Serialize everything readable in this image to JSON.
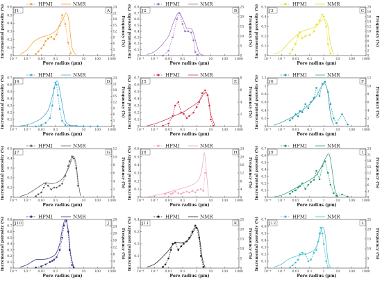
{
  "figure": {
    "legend_hpmi": "HPMI",
    "legend_nmr": "NMR",
    "xlabel": "Pore radius (μm)",
    "ylabel_left": "Incremental porosity (%)",
    "ylabel_right": "Frequency (%)",
    "xticks": [
      "10⁻⁴",
      "10⁻³",
      "0.01",
      "0.1",
      "1",
      "10",
      "100",
      "1000"
    ]
  },
  "chart_data": [
    {
      "id": "J1",
      "letter": "A",
      "color": "#f0a030",
      "type": "line",
      "xscale": "log",
      "xlim": [
        0.0001,
        1000
      ],
      "ylim_left": [
        0,
        0.6
      ],
      "yticks_left": [
        0,
        0.1,
        0.2,
        0.3,
        0.4,
        0.5,
        0.6
      ],
      "ylim_right": [
        0,
        24
      ],
      "yticks_right": [
        0,
        3,
        6,
        9,
        12,
        15,
        18,
        21,
        24
      ],
      "hpmi": {
        "x": [
          0.004,
          0.006,
          0.01,
          0.015,
          0.02,
          0.03,
          0.05,
          0.08,
          0.12,
          0.2,
          0.3,
          0.5,
          0.8,
          1.2
        ],
        "y": [
          0.02,
          0.05,
          0.09,
          0.13,
          0.18,
          0.21,
          0.23,
          0.2,
          0.26,
          0.37,
          0.5,
          0.39,
          0.16,
          0.03
        ]
      },
      "nmr": {
        "x": [
          0.0003,
          0.001,
          0.003,
          0.01,
          0.03,
          0.1,
          0.2,
          0.4,
          0.6,
          0.9,
          1.5,
          3
        ],
        "y": [
          0.5,
          3,
          7,
          9,
          10,
          12,
          15,
          19,
          21,
          17,
          4,
          0.3
        ]
      }
    },
    {
      "id": "J2",
      "letter": "B",
      "color": "#a070c0",
      "type": "line",
      "xscale": "log",
      "xlim": [
        0.0001,
        1000
      ],
      "ylim_left": [
        0,
        0.8
      ],
      "yticks_left": [
        0,
        0.1,
        0.2,
        0.3,
        0.4,
        0.5,
        0.6,
        0.7,
        0.8
      ],
      "ylim_right": [
        0,
        25
      ],
      "yticks_right": [
        0,
        5,
        10,
        15,
        20,
        25
      ],
      "hpmi": {
        "x": [
          0.004,
          0.01,
          0.02,
          0.04,
          0.06,
          0.1,
          0.15,
          0.25,
          0.4,
          0.6,
          0.8,
          1.2
        ],
        "y": [
          0.0,
          0.08,
          0.3,
          0.6,
          0.7,
          0.52,
          0.4,
          0.4,
          0.38,
          0.25,
          0.06,
          0.01
        ]
      },
      "nmr": {
        "x": [
          0.0003,
          0.001,
          0.003,
          0.01,
          0.02,
          0.04,
          0.06,
          0.1,
          0.2,
          0.3,
          0.5,
          0.8,
          1.5,
          3
        ],
        "y": [
          0.5,
          2,
          5,
          10,
          16,
          21,
          22,
          19,
          14,
          14,
          13,
          8,
          1.5,
          0.2
        ]
      }
    },
    {
      "id": "J3",
      "letter": "C",
      "color": "#e6e020",
      "type": "line",
      "xscale": "log",
      "xlim": [
        0.0001,
        1000
      ],
      "ylim_left": [
        0,
        0.5
      ],
      "yticks_left": [
        0,
        0.1,
        0.2,
        0.3,
        0.4,
        0.5
      ],
      "ylim_right": [
        0,
        20
      ],
      "yticks_right": [
        0,
        2,
        4,
        6,
        8,
        10,
        12,
        14,
        16,
        18,
        20
      ],
      "hpmi": {
        "x": [
          0.004,
          0.006,
          0.01,
          0.015,
          0.02,
          0.03,
          0.05,
          0.1,
          0.2,
          0.3,
          0.5,
          0.8,
          1,
          1.5,
          2,
          3
        ],
        "y": [
          0.02,
          0.06,
          0.12,
          0.2,
          0.24,
          0.18,
          0.2,
          0.21,
          0.25,
          0.32,
          0.36,
          0.42,
          0.4,
          0.3,
          0.12,
          0.02
        ]
      },
      "nmr": {
        "x": [
          0.0003,
          0.001,
          0.003,
          0.01,
          0.03,
          0.1,
          0.3,
          0.6,
          1,
          1.5,
          2,
          3,
          5
        ],
        "y": [
          0.5,
          2,
          5,
          8,
          10,
          11,
          12,
          14,
          15,
          14,
          12,
          5,
          0.5
        ]
      }
    },
    {
      "id": "J4",
      "letter": "D",
      "color": "#40a8d8",
      "type": "line",
      "xscale": "log",
      "xlim": [
        0.0001,
        1000
      ],
      "ylim_left": [
        0,
        0.7
      ],
      "yticks_left": [
        0,
        0.1,
        0.2,
        0.3,
        0.4,
        0.5,
        0.6,
        0.7
      ],
      "ylim_right": [
        0,
        24
      ],
      "yticks_right": [
        0,
        3,
        6,
        9,
        12,
        15,
        18,
        21,
        24
      ],
      "hpmi": {
        "x": [
          0.004,
          0.01,
          0.02,
          0.04,
          0.06,
          0.08,
          0.1,
          0.12,
          0.15,
          0.2,
          0.3,
          0.5,
          1,
          3,
          10,
          30,
          100
        ],
        "y": [
          0.0,
          0.02,
          0.05,
          0.12,
          0.3,
          0.55,
          0.63,
          0.6,
          0.45,
          0.25,
          0.08,
          0.02,
          0.01,
          0.01,
          0.0,
          0.0,
          0.0
        ]
      },
      "nmr": {
        "x": [
          0.0003,
          0.001,
          0.003,
          0.01,
          0.03,
          0.06,
          0.1,
          0.15,
          0.25,
          0.5,
          1,
          3,
          10
        ],
        "y": [
          0.2,
          0.8,
          2,
          4,
          8,
          15,
          21,
          22,
          14,
          3,
          0.8,
          0.3,
          0.1
        ]
      }
    },
    {
      "id": "J5",
      "letter": "E",
      "color": "#d03050",
      "type": "line",
      "xscale": "log",
      "xlim": [
        0.0001,
        1000
      ],
      "ylim_left": [
        0,
        0.7
      ],
      "yticks_left": [
        0,
        0.1,
        0.2,
        0.3,
        0.4,
        0.5,
        0.6,
        0.7
      ],
      "ylim_right": [
        0,
        8
      ],
      "yticks_right": [
        0,
        2,
        4,
        6,
        8
      ],
      "hpmi": {
        "x": [
          0.004,
          0.01,
          0.02,
          0.03,
          0.05,
          0.08,
          0.12,
          0.2,
          0.3,
          0.6,
          1,
          1.5,
          2.5,
          4,
          6,
          8,
          10,
          15
        ],
        "y": [
          0.01,
          0.04,
          0.15,
          0.3,
          0.35,
          0.2,
          0.18,
          0.12,
          0.15,
          0.2,
          0.28,
          0.35,
          0.48,
          0.52,
          0.45,
          0.3,
          0.1,
          0.01
        ]
      },
      "nmr": {
        "x": [
          0.0003,
          0.001,
          0.003,
          0.01,
          0.03,
          0.1,
          0.3,
          1,
          2,
          3,
          5,
          7,
          10,
          20
        ],
        "y": [
          0.1,
          0.4,
          0.8,
          1.3,
          1.8,
          2.3,
          3,
          3.8,
          4.5,
          5.3,
          5.5,
          4.5,
          2,
          0.1
        ]
      }
    },
    {
      "id": "J6",
      "letter": "F",
      "color": "#2f9fb0",
      "type": "line",
      "xscale": "log",
      "xlim": [
        0.0001,
        1000
      ],
      "ylim_left": [
        0,
        1.2
      ],
      "yticks_left": [
        0,
        0.2,
        0.4,
        0.6,
        0.8,
        1.0,
        1.2
      ],
      "ylim_right": [
        0,
        12
      ],
      "yticks_right": [
        0,
        2,
        4,
        6,
        8,
        10,
        12
      ],
      "hpmi": {
        "x": [
          0.004,
          0.006,
          0.01,
          0.015,
          0.02,
          0.03,
          0.05,
          0.08,
          0.12,
          0.2,
          0.3,
          0.5,
          0.8,
          1.2,
          2,
          3,
          5,
          8,
          20,
          50
        ],
        "y": [
          0.15,
          0.2,
          0.3,
          0.25,
          0.38,
          0.35,
          0.55,
          0.45,
          0.6,
          0.7,
          0.95,
          0.75,
          1.05,
          1.1,
          0.85,
          0.55,
          0.2,
          0.08,
          0.3,
          0.05
        ]
      },
      "nmr": {
        "x": [
          0.0003,
          0.001,
          0.003,
          0.01,
          0.03,
          0.1,
          0.3,
          0.6,
          1,
          1.5,
          2,
          3,
          5
        ],
        "y": [
          0.3,
          1,
          1.8,
          2.8,
          4,
          5.5,
          7.5,
          9.5,
          10.5,
          10,
          8,
          3,
          0.3
        ]
      }
    },
    {
      "id": "J7",
      "letter": "G",
      "color": "#606060",
      "type": "line",
      "xscale": "log",
      "xlim": [
        0.0001,
        1000
      ],
      "ylim_left": [
        0,
        0.5
      ],
      "yticks_left": [
        0,
        0.1,
        0.2,
        0.3,
        0.4,
        0.5
      ],
      "ylim_right": [
        0,
        12
      ],
      "yticks_right": [
        0,
        2,
        4,
        6,
        8,
        10,
        12
      ],
      "hpmi": {
        "x": [
          0.004,
          0.006,
          0.01,
          0.015,
          0.02,
          0.03,
          0.05,
          0.08,
          0.12,
          0.2,
          0.3,
          0.5,
          0.8,
          1,
          1.5,
          2,
          3,
          4
        ],
        "y": [
          0.01,
          0.03,
          0.05,
          0.1,
          0.14,
          0.12,
          0.08,
          0.1,
          0.1,
          0.12,
          0.14,
          0.22,
          0.32,
          0.37,
          0.42,
          0.4,
          0.3,
          0.12
        ]
      },
      "nmr": {
        "x": [
          0.0003,
          0.001,
          0.003,
          0.01,
          0.02,
          0.04,
          0.1,
          0.3,
          0.8,
          1.5,
          2,
          3,
          4,
          6
        ],
        "y": [
          0.2,
          0.8,
          1.8,
          3,
          3.6,
          3.4,
          3.5,
          4.5,
          7,
          9.5,
          10,
          8,
          4,
          0.3
        ]
      }
    },
    {
      "id": "J8",
      "letter": "H",
      "color": "#f0a8b8",
      "type": "line",
      "xscale": "log",
      "xlim": [
        0.0001,
        1000
      ],
      "ylim_left": [
        0,
        0.6
      ],
      "yticks_left": [
        0,
        0.1,
        0.2,
        0.3,
        0.4,
        0.5,
        0.6
      ],
      "ylim_right": [
        0,
        24
      ],
      "yticks_right": [
        0,
        4,
        8,
        12,
        16,
        20,
        24
      ],
      "hpmi": {
        "x": [
          0.004,
          0.006,
          0.01,
          0.015,
          0.02,
          0.03,
          0.05,
          0.08,
          0.12,
          0.2,
          0.3,
          0.5,
          0.8,
          1.2,
          2,
          3,
          4
        ],
        "y": [
          0.0,
          0.04,
          0.06,
          0.04,
          0.05,
          0.07,
          0.05,
          0.04,
          0.06,
          0.07,
          0.06,
          0.08,
          0.06,
          0.09,
          0.1,
          0.08,
          0.3
        ]
      },
      "nmr": {
        "x": [
          0.0003,
          0.001,
          0.003,
          0.01,
          0.03,
          0.1,
          0.3,
          0.8,
          1.5,
          2.5,
          3.5,
          5,
          7
        ],
        "y": [
          0.2,
          0.8,
          1.5,
          2.5,
          3.5,
          4.5,
          5.5,
          7,
          9,
          15,
          22,
          12,
          0.5
        ]
      }
    },
    {
      "id": "J9",
      "letter": "I",
      "color": "#2a9a78",
      "type": "line",
      "xscale": "log",
      "xlim": [
        0.0001,
        1000
      ],
      "ylim_left": [
        0,
        0.7
      ],
      "yticks_left": [
        0,
        0.1,
        0.2,
        0.3,
        0.4,
        0.5,
        0.6,
        0.7
      ],
      "ylim_right": [
        0,
        24
      ],
      "yticks_right": [
        0,
        3,
        6,
        9,
        12,
        15,
        18,
        21,
        24
      ],
      "hpmi": {
        "x": [
          0.004,
          0.006,
          0.01,
          0.015,
          0.02,
          0.03,
          0.05,
          0.08,
          0.12,
          0.2,
          0.3,
          0.5,
          0.8,
          1.2,
          2,
          3,
          5,
          8,
          20,
          50
        ],
        "y": [
          0.05,
          0.08,
          0.1,
          0.14,
          0.16,
          0.2,
          0.12,
          0.18,
          0.22,
          0.25,
          0.38,
          0.26,
          0.45,
          0.52,
          0.35,
          0.18,
          0.06,
          0.02,
          0.04,
          0.01
        ]
      },
      "nmr": {
        "x": [
          0.0003,
          0.001,
          0.003,
          0.01,
          0.03,
          0.1,
          0.3,
          0.8,
          1.5,
          2.5,
          4,
          6,
          10
        ],
        "y": [
          0.2,
          1,
          2.5,
          4.5,
          6.5,
          8.5,
          11,
          16,
          20,
          21,
          13,
          4,
          0.3
        ]
      }
    },
    {
      "id": "J10",
      "letter": "J",
      "color": "#303080",
      "type": "line",
      "xscale": "log",
      "xlim": [
        0.0001,
        1000
      ],
      "ylim_left": [
        0,
        0.8
      ],
      "yticks_left": [
        0,
        0.1,
        0.2,
        0.3,
        0.4,
        0.5,
        0.6,
        0.7,
        0.8
      ],
      "ylim_right": [
        0,
        28
      ],
      "yticks_right": [
        0,
        4,
        8,
        12,
        16,
        20,
        24,
        28
      ],
      "hpmi": {
        "x": [
          0.004,
          0.01,
          0.02,
          0.04,
          0.06,
          0.08,
          0.12,
          0.2,
          0.3,
          0.4,
          0.6,
          0.8,
          1,
          1.5,
          2
        ],
        "y": [
          0.01,
          0.03,
          0.06,
          0.1,
          0.12,
          0.14,
          0.18,
          0.3,
          0.5,
          0.7,
          0.78,
          0.6,
          0.3,
          0.05,
          0.01
        ]
      },
      "nmr": {
        "x": [
          0.0003,
          0.001,
          0.003,
          0.005,
          0.01,
          0.03,
          0.1,
          0.2,
          0.3,
          0.5,
          0.8,
          1.2,
          2
        ],
        "y": [
          0.5,
          2,
          4.5,
          5,
          5,
          5.5,
          8,
          14,
          22,
          28,
          22,
          8,
          0.5
        ]
      }
    },
    {
      "id": "J11",
      "letter": "K",
      "color": "#202020",
      "type": "line",
      "xscale": "log",
      "xlim": [
        0.0001,
        1000
      ],
      "ylim_left": [
        0,
        0.4
      ],
      "yticks_left": [
        0,
        0.1,
        0.2,
        0.3,
        0.4
      ],
      "ylim_right": [
        0,
        25
      ],
      "yticks_right": [
        0,
        5,
        10,
        15,
        20,
        25
      ],
      "hpmi": {
        "x": [
          0.004,
          0.006,
          0.01,
          0.015,
          0.02,
          0.03,
          0.05,
          0.08,
          0.12,
          0.2,
          0.3,
          0.5,
          0.8,
          1,
          1.5,
          2,
          3
        ],
        "y": [
          0.01,
          0.03,
          0.08,
          0.15,
          0.2,
          0.21,
          0.15,
          0.18,
          0.2,
          0.22,
          0.25,
          0.3,
          0.35,
          0.33,
          0.25,
          0.1,
          0.01
        ]
      },
      "nmr": {
        "x": [
          0.0003,
          0.001,
          0.003,
          0.01,
          0.02,
          0.04,
          0.1,
          0.3,
          0.6,
          1,
          1.5,
          2.5,
          4
        ],
        "y": [
          0.5,
          2,
          5,
          9,
          12,
          13,
          13,
          15,
          19,
          21,
          17,
          5,
          0.3
        ]
      }
    },
    {
      "id": "J12",
      "letter": "L",
      "color": "#40c0d0",
      "type": "line",
      "xscale": "log",
      "xlim": [
        0.0001,
        1000
      ],
      "ylim_left": [
        0,
        0.7
      ],
      "yticks_left": [
        0,
        0.1,
        0.2,
        0.3,
        0.4,
        0.5,
        0.6,
        0.7
      ],
      "ylim_right": [
        0,
        25
      ],
      "yticks_right": [
        0,
        5,
        10,
        15,
        20,
        25
      ],
      "hpmi": {
        "x": [
          0.004,
          0.006,
          0.01,
          0.015,
          0.02,
          0.03,
          0.05,
          0.08,
          0.12,
          0.2,
          0.3,
          0.4,
          0.5,
          0.6,
          0.8,
          1,
          1.5,
          2
        ],
        "y": [
          0.01,
          0.04,
          0.08,
          0.12,
          0.2,
          0.22,
          0.2,
          0.1,
          0.12,
          0.22,
          0.26,
          0.38,
          0.5,
          0.58,
          0.5,
          0.35,
          0.1,
          0.01
        ]
      },
      "nmr": {
        "x": [
          0.0003,
          0.001,
          0.003,
          0.01,
          0.03,
          0.1,
          0.2,
          0.3,
          0.5,
          0.8,
          1.2,
          2,
          3
        ],
        "y": [
          0.5,
          2,
          4.5,
          6,
          7,
          8,
          9,
          11,
          16,
          21,
          18,
          4,
          0.3
        ]
      }
    }
  ]
}
